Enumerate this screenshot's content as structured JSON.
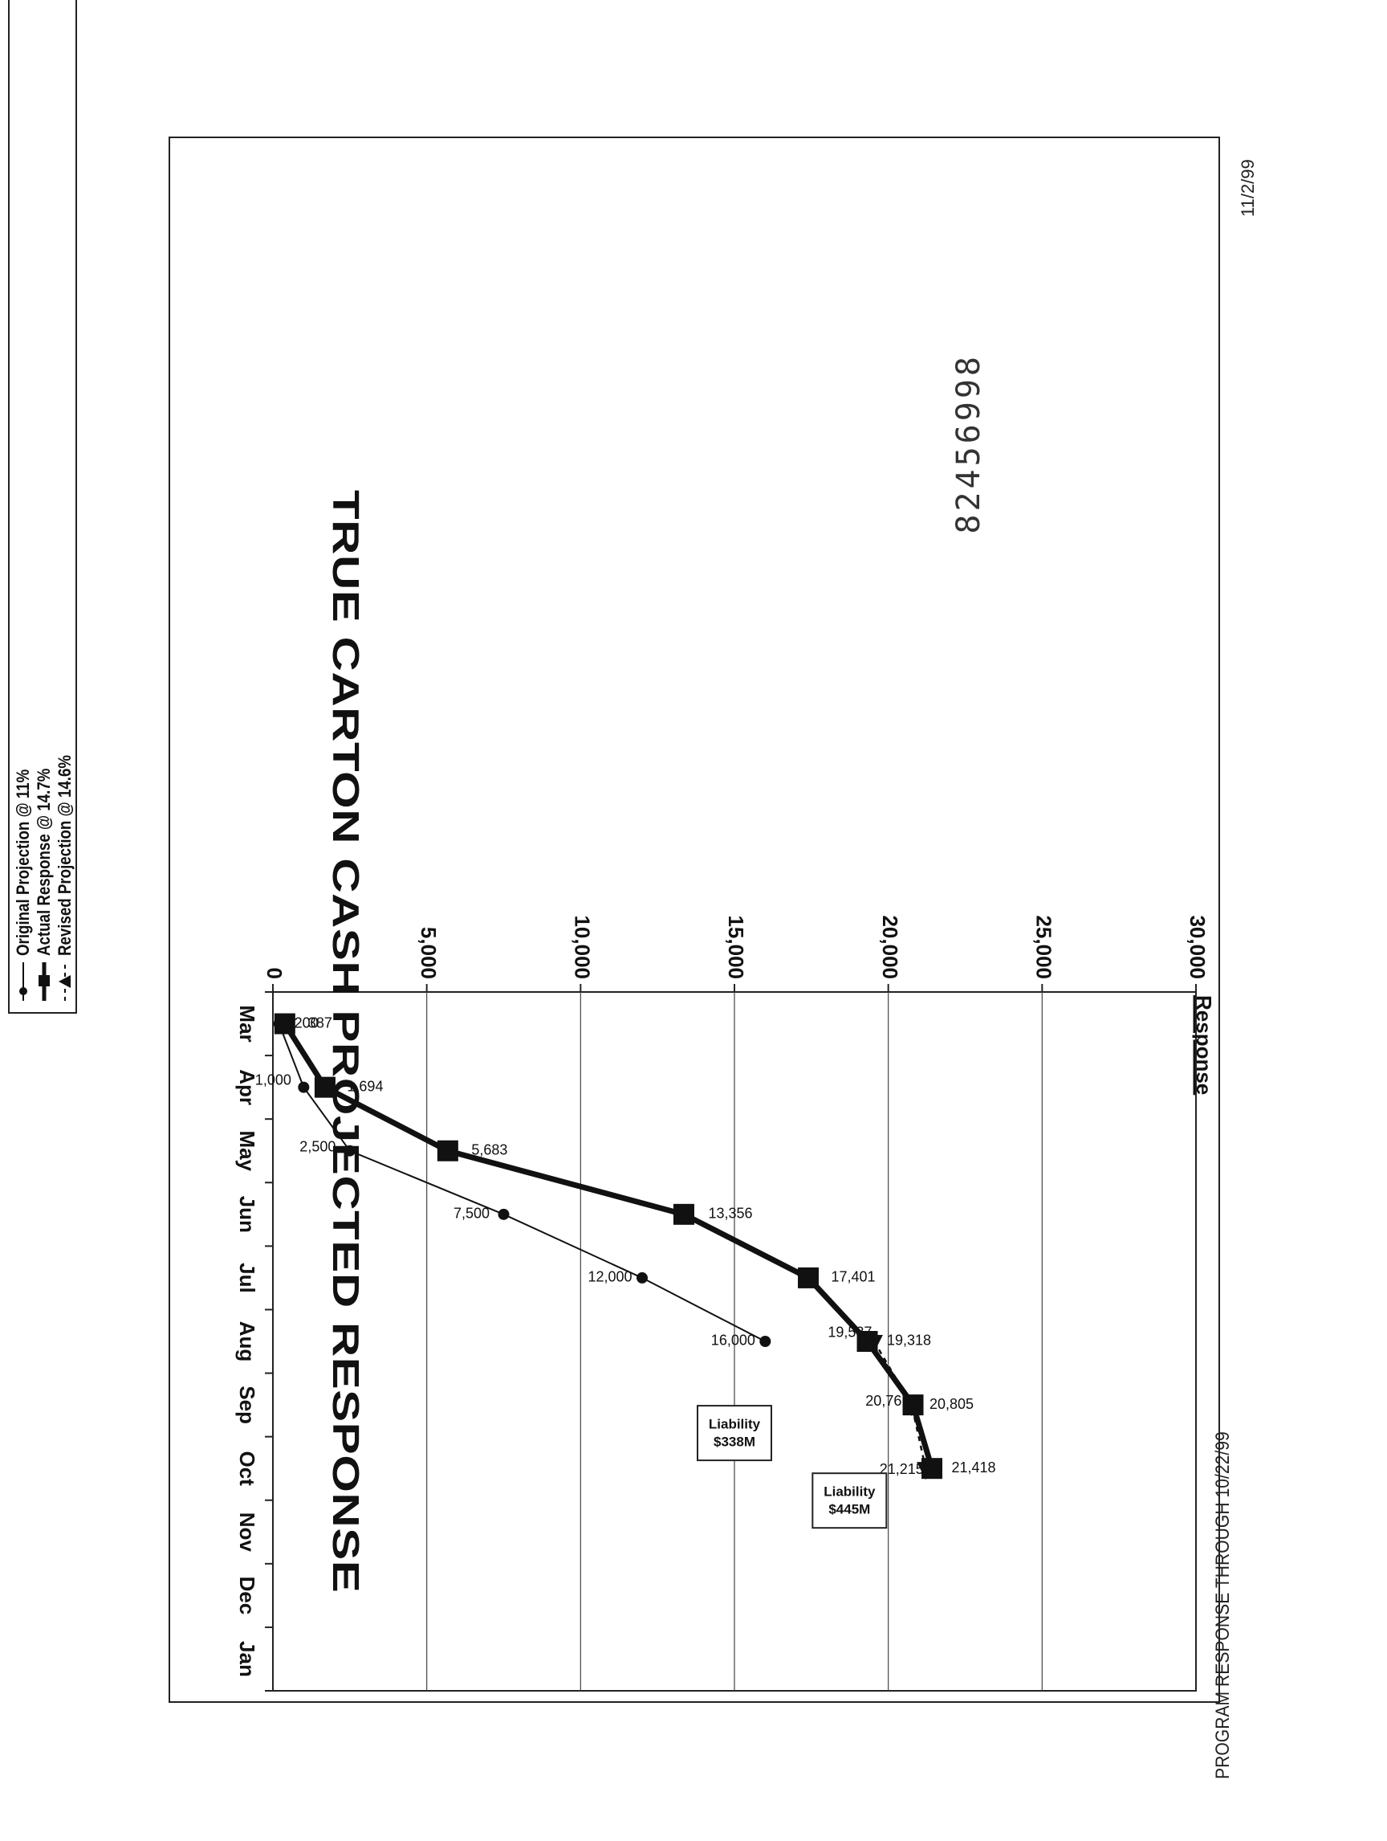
{
  "document": {
    "doc_number": "82456998",
    "footer_left": "PROGRAM RESPONSE THROUGH 10/22/99",
    "footer_right": "11/2/99"
  },
  "chart_data": {
    "type": "line",
    "title": "TRUE CARTON CASH PROJECTED RESPONSE",
    "ylabel": "Response",
    "xlabel": "",
    "ylim": [
      0,
      30000
    ],
    "yticks": [
      0,
      5000,
      10000,
      15000,
      20000,
      25000,
      30000
    ],
    "ytick_labels": [
      "0",
      "5,000",
      "10,000",
      "15,000",
      "20,000",
      "25,000",
      "30,000"
    ],
    "categories": [
      "Mar",
      "Apr",
      "May",
      "Jun",
      "Jul",
      "Aug",
      "Sep",
      "Oct",
      "Nov",
      "Dec",
      "Jan"
    ],
    "grid": "horizontal",
    "legend_position": "left",
    "series": [
      {
        "name": "Original Projection @ 11%",
        "style": "thin-circle",
        "color": "#111111",
        "points": [
          {
            "x": "Mar",
            "y": 200,
            "label": "200"
          },
          {
            "x": "Apr",
            "y": 1000,
            "label": "1,000"
          },
          {
            "x": "May",
            "y": 2500,
            "label": "2,500"
          },
          {
            "x": "Jun",
            "y": 7500,
            "label": "7,500"
          },
          {
            "x": "Jul",
            "y": 12000,
            "label": "12,000"
          },
          {
            "x": "Aug",
            "y": 16000,
            "label": "16,000"
          }
        ]
      },
      {
        "name": "Actual Response @ 14.7%",
        "style": "thick-square",
        "color": "#111111",
        "points": [
          {
            "x": "Mar",
            "y": 387,
            "label": "387"
          },
          {
            "x": "Apr",
            "y": 1694,
            "label": "1,694"
          },
          {
            "x": "May",
            "y": 5683,
            "label": "5,683"
          },
          {
            "x": "Jun",
            "y": 13356,
            "label": "13,356"
          },
          {
            "x": "Jul",
            "y": 17401,
            "label": "17,401"
          },
          {
            "x": "Aug",
            "y": 19318,
            "label": "19,318"
          },
          {
            "x": "Sep",
            "y": 20805,
            "label": "20,805"
          },
          {
            "x": "Oct",
            "y": 21418,
            "label": "21,418"
          }
        ]
      },
      {
        "name": "Revised Projection @ 14.6%",
        "style": "dashed-triangle",
        "color": "#111111",
        "points": [
          {
            "x": "Aug",
            "y": 19537,
            "label": "19,537"
          },
          {
            "x": "Sep",
            "y": 20761,
            "label": "20,761"
          },
          {
            "x": "Oct",
            "y": 21215,
            "label": "21,215"
          }
        ]
      }
    ],
    "annotations": [
      {
        "lines": [
          "Liability",
          "$338M"
        ],
        "x": "Sep",
        "y": 15000
      },
      {
        "lines": [
          "Liability",
          "$445M"
        ],
        "x": "Oct",
        "y": 19000
      }
    ]
  }
}
